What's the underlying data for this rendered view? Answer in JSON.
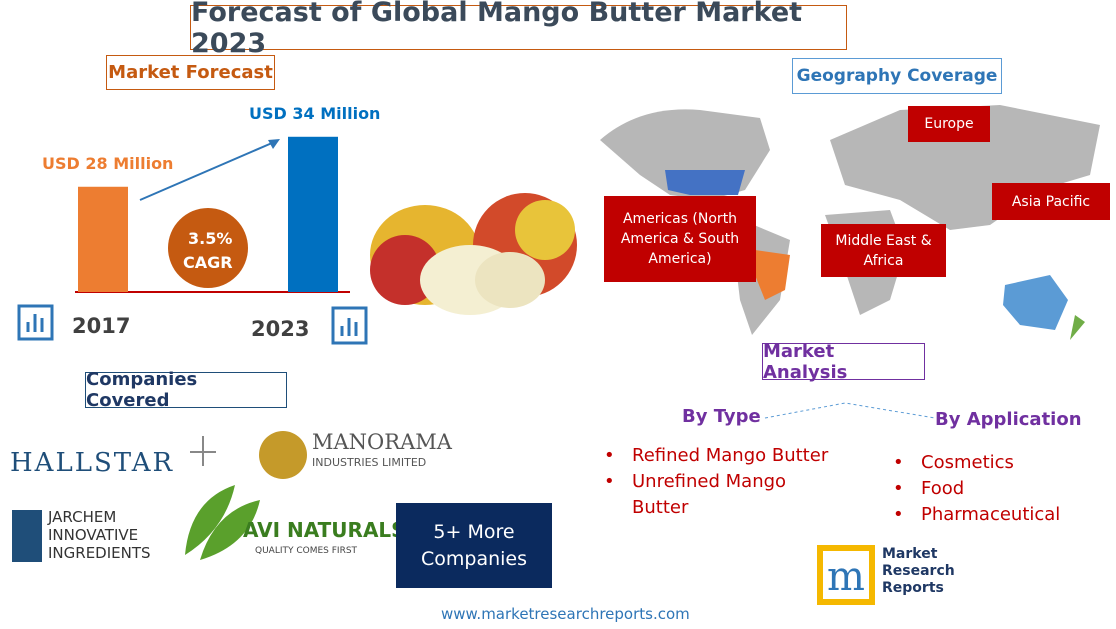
{
  "title": "Forecast of Global Mango Butter Market 2023",
  "market_forecast": {
    "heading": "Market Forecast",
    "bars": [
      {
        "year": "2017",
        "label": "USD 28 Million",
        "value": 28,
        "color": "#ed7d31"
      },
      {
        "year": "2023",
        "label": "USD 34 Million",
        "value": 34,
        "color": "#0070c0"
      }
    ],
    "cagr": {
      "value": "3.5%",
      "label": "CAGR"
    }
  },
  "companies": {
    "heading": "Companies Covered",
    "hallstar": "HALLSTAR",
    "manorama": [
      "MANORAMA",
      "INDUSTRIES LIMITED"
    ],
    "jarchem": [
      "JARCHEM",
      "INNOVATIVE",
      "INGREDIENTS"
    ],
    "avi": [
      "AVI NATURALS",
      "QUALITY COMES FIRST"
    ],
    "more": [
      "5+ More",
      "Companies"
    ]
  },
  "geography": {
    "heading": "Geography Coverage",
    "regions": {
      "europe": "Europe",
      "americas": "Americas (North America & South America)",
      "mea": "Middle East & Africa",
      "apac": "Asia Pacific"
    }
  },
  "analysis": {
    "heading": "Market Analysis",
    "by_type": {
      "heading": "By Type",
      "items": [
        "Refined Mango Butter",
        "Unrefined Mango Butter"
      ]
    },
    "by_application": {
      "heading": "By Application",
      "items": [
        "Cosmetics",
        "Food",
        "Pharmaceutical"
      ]
    }
  },
  "brand": [
    "Market",
    "Research",
    "Reports"
  ],
  "url": "www.marketresearchreports.com"
}
